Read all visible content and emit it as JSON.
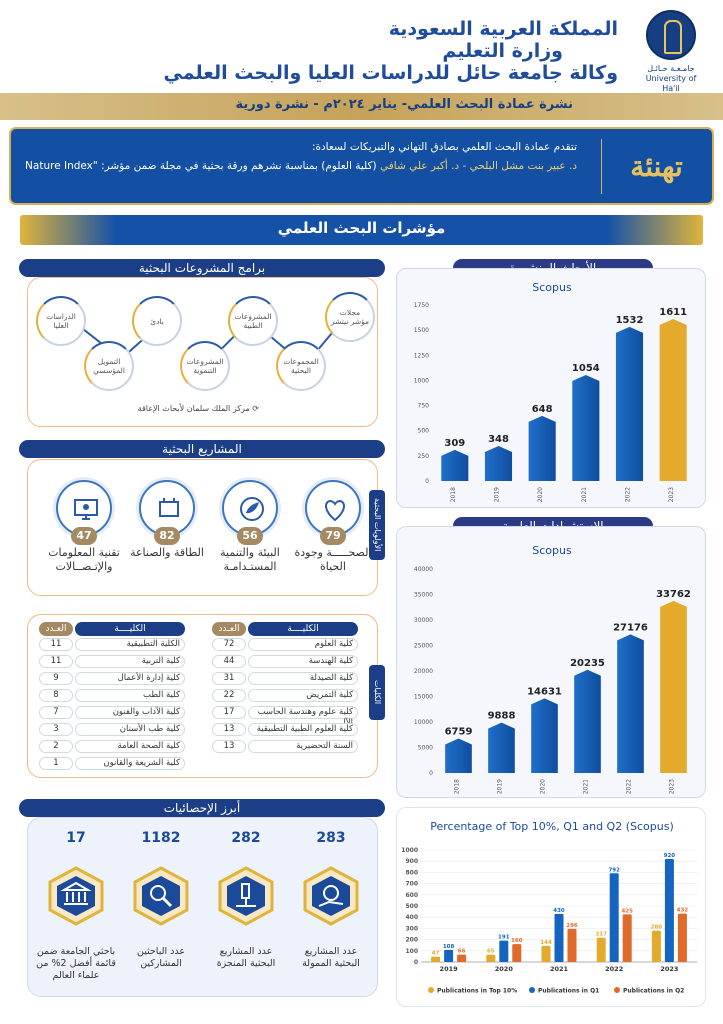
{
  "header": {
    "logo_text_ar": "جامـعـة حـائـل",
    "logo_text_en": "University of Ha'il",
    "line1": "المملكة العربية السعودية",
    "line2": "وزارة التعليم",
    "line3": "وكالة جامعة حائل للدراسات العليا والبحث العلمي",
    "bulletin": "نشرة عمادة البحث العلمي- يناير ٢٠٢٤م - نشرة دورية"
  },
  "congrats": {
    "word": "تهنئة",
    "intro": "تتقدم عمادة البحث العلمي بصادق التهاني والتبريكات لسعادة:",
    "names": "د. عبير بنت مشل البلحي - د. أكبر علي شافي",
    "body": "(كلية العلوم) بمناسبة نشرهم ورقة بحثية في مجلة ضمن مؤشر: \"Nature Index"
  },
  "indicators_title": "مؤشرات البحث العلمي",
  "programs": {
    "title": "برامج المشروعات البحثية",
    "nodes": [
      "مجلات مؤشر نيتشر",
      "المجموعات البحثية",
      "المشروعات الطبية",
      "المشروعات التنموية",
      "بادئ",
      "التمويل المؤسسي",
      "الدراسات العليا"
    ],
    "footer": "مركز الملك سلمان لأبحاث الإعاقة"
  },
  "projects": {
    "title": "المشاريع البحثية",
    "side_label": "الأولويات البحثية",
    "items": [
      {
        "value": "79",
        "label": "الصحـــــة وجودة الحياة"
      },
      {
        "value": "56",
        "label": "البيئة والتنمية المستـدامـة"
      },
      {
        "value": "82",
        "label": "الطاقة والصناعة"
      },
      {
        "value": "47",
        "label": "تقنية المعلومات والإتـصــالات"
      }
    ]
  },
  "colleges": {
    "side_label": "الكليات",
    "col_header": "الكليــــة",
    "count_header": "العـدد",
    "right": [
      {
        "name": "كلية العلوم",
        "count": "72"
      },
      {
        "name": "كلية الهندسة",
        "count": "44"
      },
      {
        "name": "كلية الصيدلة",
        "count": "31"
      },
      {
        "name": "كلية التمريض",
        "count": "22"
      },
      {
        "name": "كلية علوم وهندسة الحاسب الآلي",
        "count": "17"
      },
      {
        "name": "كلية العلوم الطبية التطبيقية",
        "count": "13"
      },
      {
        "name": "السنة التحضيرية",
        "count": "13"
      }
    ],
    "left": [
      {
        "name": "الكلية التطبيقية",
        "count": "11"
      },
      {
        "name": "كلية التربية",
        "count": "11"
      },
      {
        "name": "كلية إدارة الأعمال",
        "count": "9"
      },
      {
        "name": "كلية الطب",
        "count": "8"
      },
      {
        "name": "كلية الآداب والفنون",
        "count": "7"
      },
      {
        "name": "كلية طب الأسنان",
        "count": "3"
      },
      {
        "name": "كلية الصحة العامة",
        "count": "2"
      },
      {
        "name": "كلية الشريعة والقانون",
        "count": "1"
      }
    ]
  },
  "stats": {
    "title": "أبرز الإحصائيات",
    "items": [
      {
        "value": "283",
        "label": "عدد المشاريع البحثية الممولة",
        "icon": "money-hand-icon"
      },
      {
        "value": "282",
        "label": "عدد المشاريع البحثية المنجزة",
        "icon": "microscope-icon"
      },
      {
        "value": "1182",
        "label": "عدد الباحثين المشاركين",
        "icon": "researcher-icon"
      },
      {
        "value": "17",
        "label": "باحثي الجامعة ضمن قائمة أفضل 2% من علماء العالم",
        "icon": "university-icon"
      }
    ]
  },
  "colors": {
    "blue": "#1565c0",
    "gold": "#e3aa2b",
    "orange": "#e0692c",
    "navy": "#1c3e86"
  },
  "chart_data": [
    {
      "type": "bar",
      "panel_title": "الأبحاث المنشورة",
      "title": "Scopus",
      "categories": [
        "2018",
        "2019",
        "2020",
        "2021",
        "2022",
        "2023"
      ],
      "values": [
        309,
        348,
        648,
        1054,
        1532,
        1611
      ],
      "ylim": [
        0,
        1750
      ],
      "yticks": [
        0,
        250,
        500,
        750,
        1000,
        1250,
        1500,
        1750
      ],
      "highlight_last": true
    },
    {
      "type": "bar",
      "panel_title": "الاستشهادات العلمية",
      "title": "Scopus",
      "categories": [
        "2018",
        "2019",
        "2020",
        "2021",
        "2022",
        "2023"
      ],
      "values": [
        6759,
        9888,
        14631,
        20235,
        27176,
        33762
      ],
      "ylim": [
        0,
        40000
      ],
      "yticks": [
        0,
        5000,
        10000,
        15000,
        20000,
        25000,
        30000,
        35000,
        40000
      ],
      "highlight_last": true
    },
    {
      "type": "bar",
      "title": "Percentage of Top 10%, Q1 and Q2 (Scopus)",
      "categories": [
        "2019",
        "2020",
        "2021",
        "2022",
        "2023"
      ],
      "series": [
        {
          "name": "Publications in Top 10%",
          "values": [
            47,
            65,
            144,
            217,
            280
          ]
        },
        {
          "name": "Publications in Q1",
          "values": [
            108,
            191,
            430,
            792,
            920
          ]
        },
        {
          "name": "Publications in Q2",
          "values": [
            66,
            160,
            296,
            425,
            432
          ]
        }
      ],
      "ylim": [
        0,
        1000
      ],
      "yticks": [
        0,
        100,
        200,
        300,
        400,
        500,
        600,
        700,
        800,
        900,
        1000
      ],
      "legend": "bottom"
    }
  ]
}
